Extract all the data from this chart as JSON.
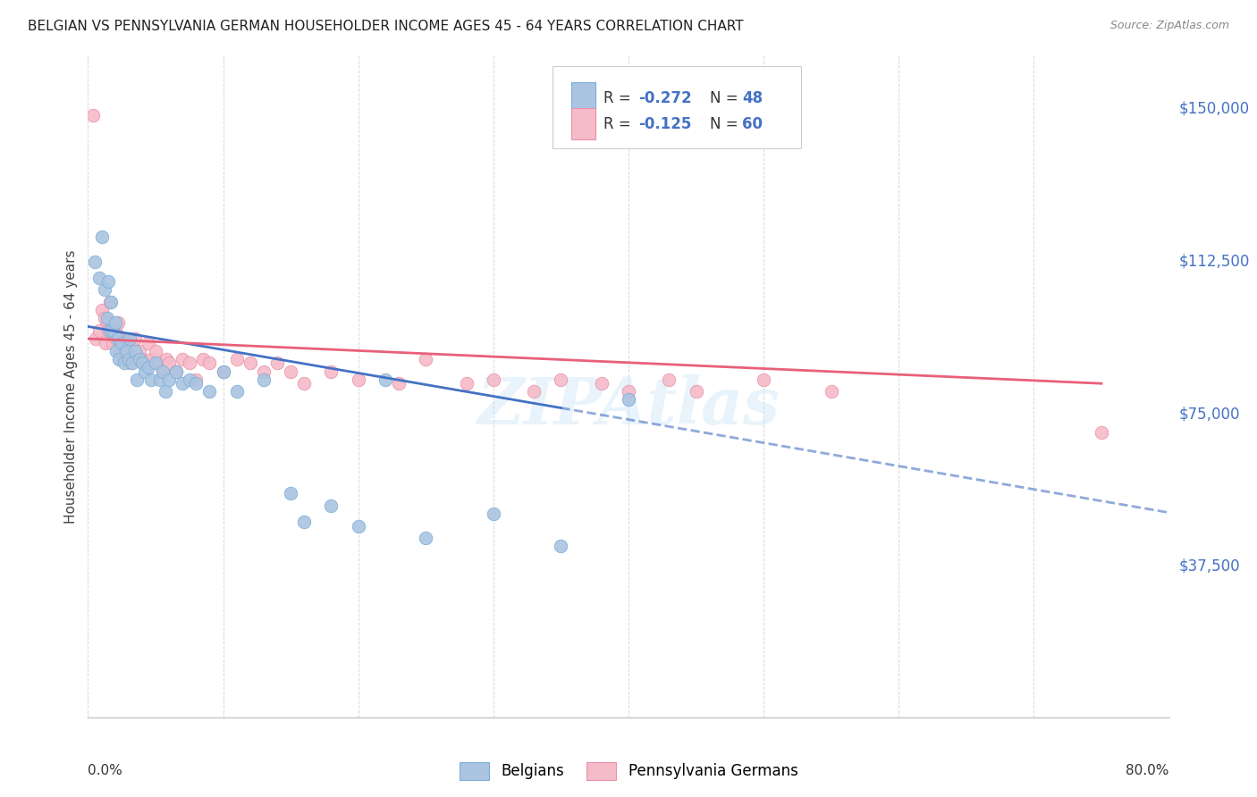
{
  "title": "BELGIAN VS PENNSYLVANIA GERMAN HOUSEHOLDER INCOME AGES 45 - 64 YEARS CORRELATION CHART",
  "source": "Source: ZipAtlas.com",
  "ylabel": "Householder Income Ages 45 - 64 years",
  "ytick_labels": [
    "$37,500",
    "$75,000",
    "$112,500",
    "$150,000"
  ],
  "ytick_values": [
    37500,
    75000,
    112500,
    150000
  ],
  "ymin": 0,
  "ymax": 162500,
  "xmin": 0.0,
  "xmax": 0.8,
  "belgian_color": "#aac4e2",
  "pa_german_color": "#f5bbc8",
  "belgian_edge": "#7aafd4",
  "pa_german_edge": "#e890a8",
  "trend_belgian_color": "#4472c4",
  "trend_pa_german_color": "#e8607a",
  "legend_r_belgian": "-0.272",
  "legend_n_belgian": "48",
  "legend_r_pa": "-0.125",
  "legend_n_pa": "60",
  "watermark": "ZIPAtlas",
  "background_color": "#ffffff",
  "grid_color": "#d8d8d8",
  "belgian_scatter_x": [
    0.005,
    0.008,
    0.01,
    0.012,
    0.014,
    0.015,
    0.016,
    0.017,
    0.018,
    0.02,
    0.021,
    0.022,
    0.023,
    0.025,
    0.027,
    0.028,
    0.03,
    0.031,
    0.033,
    0.035,
    0.036,
    0.038,
    0.04,
    0.042,
    0.045,
    0.047,
    0.05,
    0.053,
    0.055,
    0.057,
    0.06,
    0.065,
    0.07,
    0.075,
    0.08,
    0.09,
    0.1,
    0.11,
    0.13,
    0.15,
    0.16,
    0.18,
    0.2,
    0.22,
    0.25,
    0.3,
    0.35,
    0.4
  ],
  "belgian_scatter_y": [
    112000,
    108000,
    118000,
    105000,
    98000,
    107000,
    95000,
    102000,
    95000,
    97000,
    90000,
    93000,
    88000,
    92000,
    87000,
    90000,
    88000,
    93000,
    87000,
    90000,
    83000,
    88000,
    87000,
    85000,
    86000,
    83000,
    87000,
    83000,
    85000,
    80000,
    83000,
    85000,
    82000,
    83000,
    82000,
    80000,
    85000,
    80000,
    83000,
    55000,
    48000,
    52000,
    47000,
    83000,
    44000,
    50000,
    42000,
    78000
  ],
  "pa_german_scatter_x": [
    0.004,
    0.006,
    0.008,
    0.01,
    0.012,
    0.013,
    0.014,
    0.015,
    0.016,
    0.018,
    0.02,
    0.021,
    0.022,
    0.023,
    0.025,
    0.026,
    0.028,
    0.03,
    0.031,
    0.033,
    0.035,
    0.036,
    0.038,
    0.04,
    0.042,
    0.045,
    0.047,
    0.05,
    0.052,
    0.055,
    0.058,
    0.06,
    0.065,
    0.07,
    0.075,
    0.08,
    0.085,
    0.09,
    0.1,
    0.11,
    0.12,
    0.13,
    0.14,
    0.15,
    0.16,
    0.18,
    0.2,
    0.23,
    0.25,
    0.28,
    0.3,
    0.33,
    0.35,
    0.38,
    0.4,
    0.43,
    0.45,
    0.5,
    0.55,
    0.75
  ],
  "pa_german_scatter_y": [
    148000,
    93000,
    95000,
    100000,
    98000,
    92000,
    97000,
    95000,
    102000,
    92000,
    95000,
    93000,
    97000,
    90000,
    88000,
    93000,
    92000,
    90000,
    87000,
    92000,
    93000,
    88000,
    90000,
    88000,
    87000,
    92000,
    88000,
    90000,
    87000,
    85000,
    88000,
    87000,
    85000,
    88000,
    87000,
    83000,
    88000,
    87000,
    85000,
    88000,
    87000,
    85000,
    87000,
    85000,
    82000,
    85000,
    83000,
    82000,
    88000,
    82000,
    83000,
    80000,
    83000,
    82000,
    80000,
    83000,
    80000,
    83000,
    80000,
    70000
  ]
}
